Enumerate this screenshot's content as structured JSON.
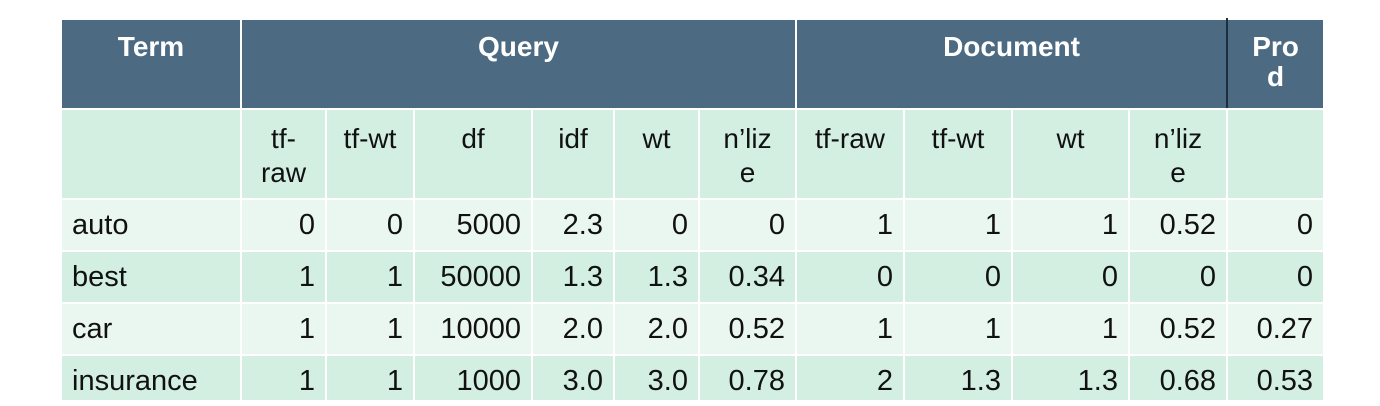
{
  "table": {
    "groups": {
      "term": "Term",
      "query": "Query",
      "document": "Document",
      "prod": "Pro d"
    },
    "subheaders": [
      "",
      "tf-\nraw",
      "tf-wt",
      "df",
      "idf",
      "wt",
      "n’liz\ne",
      "tf-raw",
      "tf-wt",
      "wt",
      "n’liz\ne",
      ""
    ],
    "rows": [
      [
        "auto",
        "0",
        "0",
        "5000",
        "2.3",
        "0",
        "0",
        "1",
        "1",
        "1",
        "0.52",
        "0"
      ],
      [
        "best",
        "1",
        "1",
        "50000",
        "1.3",
        "1.3",
        "0.34",
        "0",
        "0",
        "0",
        "0",
        "0"
      ],
      [
        "car",
        "1",
        "1",
        "10000",
        "2.0",
        "2.0",
        "0.52",
        "1",
        "1",
        "1",
        "0.52",
        "0.27"
      ],
      [
        "insurance",
        "1",
        "1",
        "1000",
        "3.0",
        "3.0",
        "0.78",
        "2",
        "1.3",
        "1.3",
        "0.68",
        "0.53"
      ]
    ]
  }
}
